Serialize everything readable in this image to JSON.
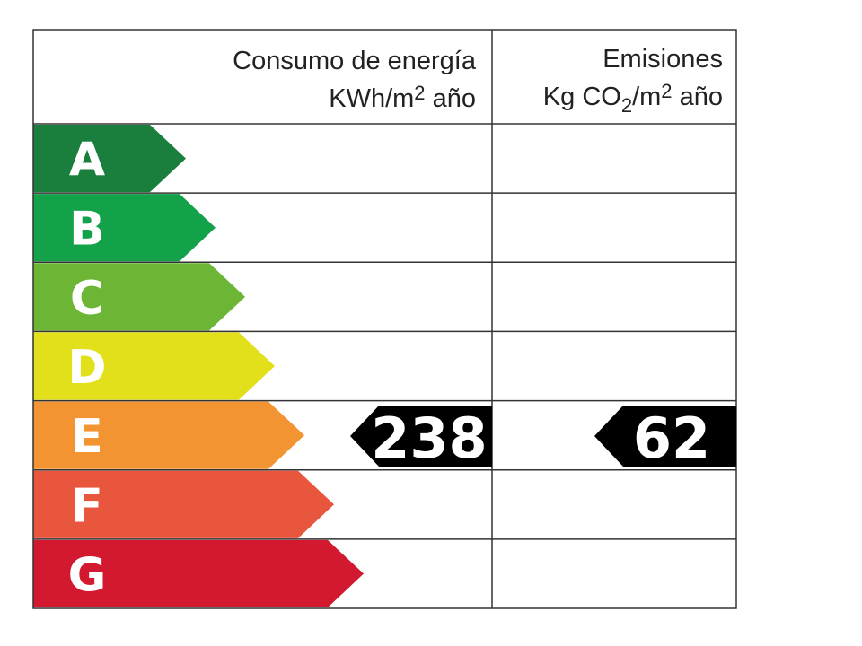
{
  "energy_header": {
    "title": "Consumo de energía",
    "unit": [
      "KWh/m",
      "2",
      " año"
    ]
  },
  "emissions_header": {
    "title": "Emisiones",
    "unit": [
      "Kg CO",
      "2",
      "/m",
      "2",
      " año"
    ]
  },
  "ratings": [
    {
      "letter": "A",
      "color": "#1a7f3c"
    },
    {
      "letter": "B",
      "color": "#13a14a"
    },
    {
      "letter": "C",
      "color": "#6cb535"
    },
    {
      "letter": "D",
      "color": "#e2df1b"
    },
    {
      "letter": "E",
      "color": "#f29432"
    },
    {
      "letter": "F",
      "color": "#e8563d"
    },
    {
      "letter": "G",
      "color": "#d2192f"
    }
  ],
  "energy_value": 238,
  "emissions_value": 62
}
